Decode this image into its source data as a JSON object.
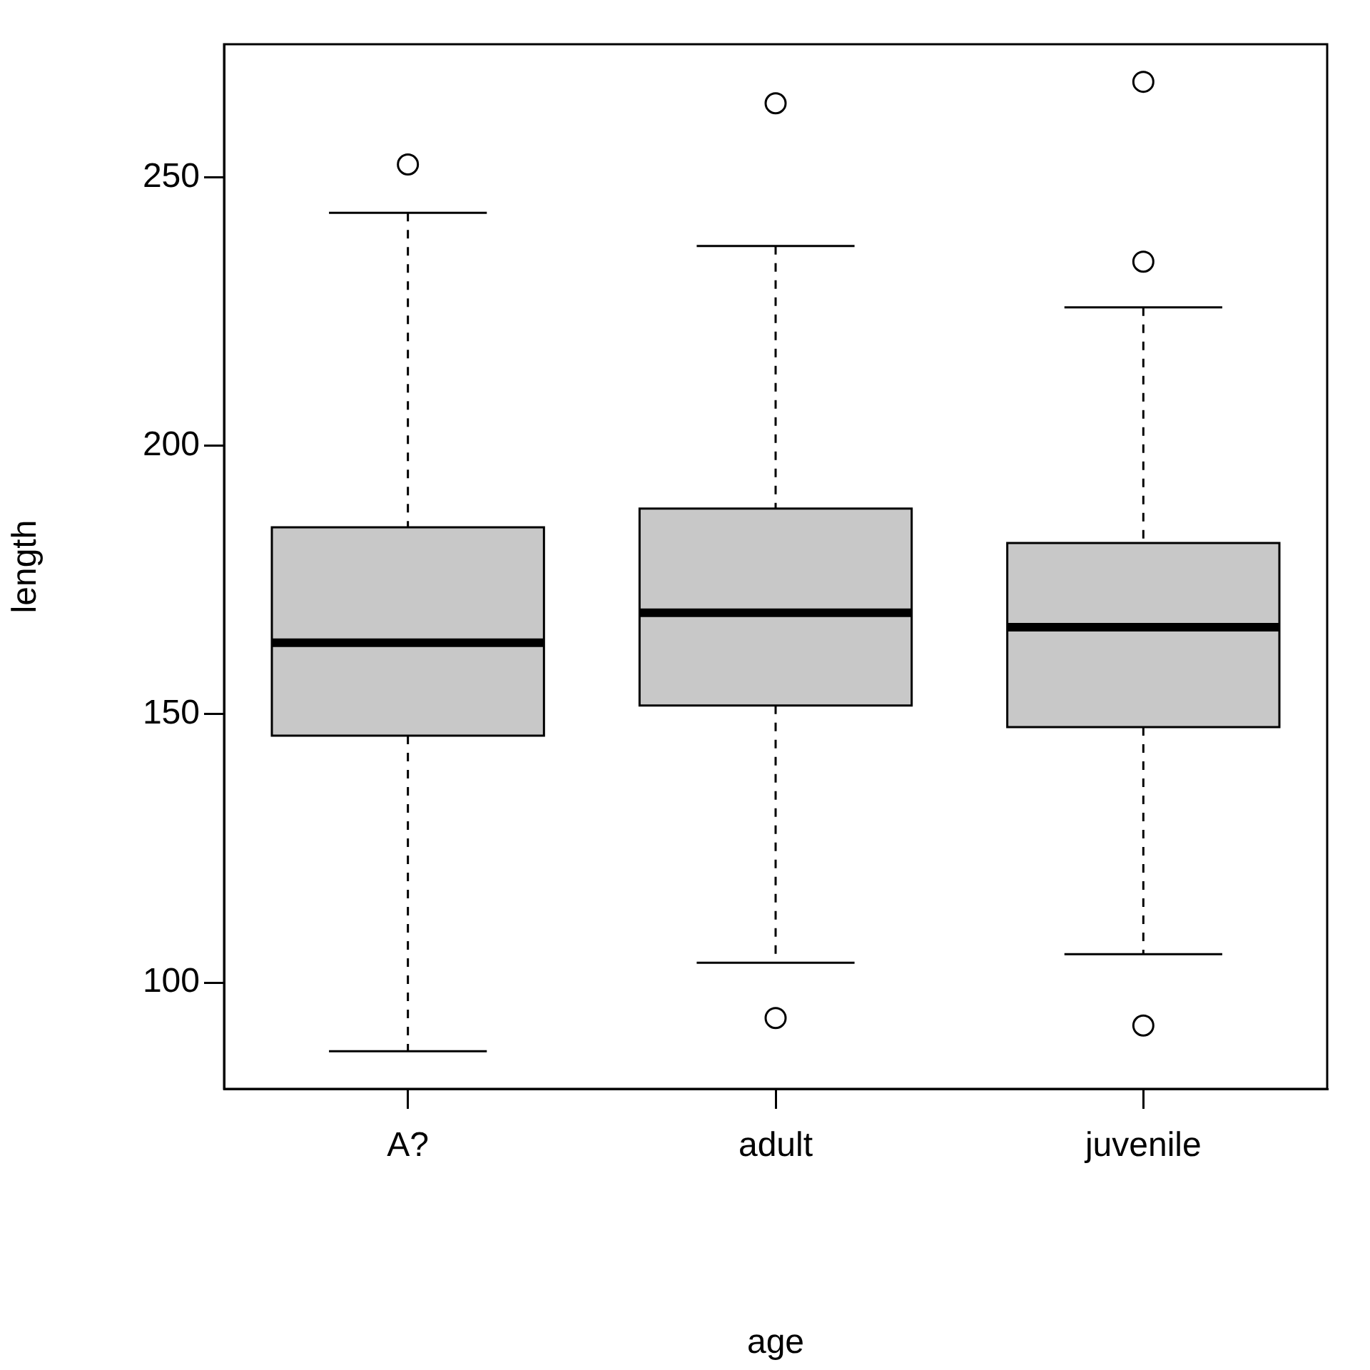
{
  "chart_data": {
    "type": "box",
    "xlabel": "age",
    "ylabel": "length",
    "categories": [
      "A?",
      "adult",
      "juvenile"
    ],
    "color": "#c8c8c8",
    "boxes": [
      {
        "low": 87.2,
        "q1": 146,
        "median": 163.3,
        "q3": 184.8,
        "high": 243.4,
        "outliers": [
          252.4
        ]
      },
      {
        "low": 103.7,
        "q1": 151.6,
        "median": 168.9,
        "q3": 188.3,
        "high": 237.2,
        "outliers": [
          263.8,
          93.4
        ]
      },
      {
        "low": 105.3,
        "q1": 147.6,
        "median": 166.2,
        "q3": 181.9,
        "high": 225.8,
        "outliers": [
          267.8,
          234.3,
          92
        ]
      }
    ],
    "ylim": [
      80.2,
      274.8
    ],
    "yticks": [
      100,
      150,
      200,
      250
    ],
    "grid": false
  }
}
